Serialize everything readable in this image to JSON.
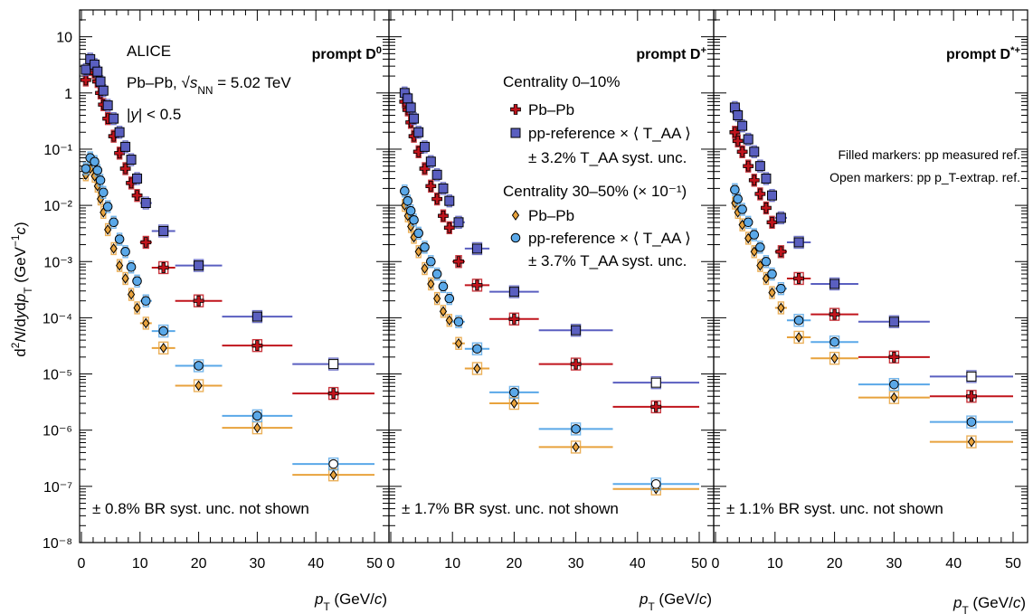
{
  "figure": {
    "ylabel": "d²N/dydp_T (GeV⁻¹c)",
    "xlabel": "p_T (GeV/c)",
    "x_ticks": [
      "0",
      "10",
      "20",
      "30",
      "40",
      "50"
    ],
    "y_ticks": [
      "10",
      "1",
      "10⁻¹",
      "10⁻²",
      "10⁻³",
      "10⁻⁴",
      "10⁻⁵",
      "10⁻⁶",
      "10⁻⁷",
      "10⁻⁸"
    ],
    "collab": "ALICE",
    "system": "Pb–Pb, √sNN = 5.02 TeV",
    "rapidity": "|y| < 0.5",
    "legend": {
      "cent1": "Centrality 0–10%",
      "cent1_pbpb": "Pb–Pb",
      "cent1_pp": "pp-reference × ⟨ T_AA ⟩",
      "cent1_syst": "± 3.2% T_AA syst. unc.",
      "cent2": "Centrality 30–50% (× 10⁻¹)",
      "cent2_pbpb": "Pb–Pb",
      "cent2_pp": "pp-reference × ⟨ T_AA ⟩",
      "cent2_syst": "± 3.7% T_AA syst. unc."
    },
    "note_filled": "Filled markers: pp measured ref.",
    "note_open": "Open markers: pp p_T-extrap. ref.",
    "colors": {
      "pbpb_central": "#c0141c",
      "pp_central": "#5a5fc0",
      "pbpb_semi": "#e8a23c",
      "pp_semi": "#5aa8e8",
      "axis": "#000000"
    }
  },
  "chart_data": [
    {
      "type": "scatter",
      "title": "prompt D⁰",
      "br_note": "± 0.8% BR syst. unc. not shown",
      "xlabel": "p_T (GeV/c)",
      "ylabel": "d²N/dydp_T (GeV⁻¹c)",
      "xlim": [
        0,
        50
      ],
      "ylim": [
        1e-08,
        30
      ],
      "yscale": "log",
      "series": [
        {
          "name": "Pb–Pb, Centrality 0–10%",
          "marker": "cross",
          "color": "pbpb_central",
          "x": [
            0.75,
            1.5,
            2.25,
            2.75,
            3.25,
            3.75,
            4.5,
            5.5,
            6.5,
            7.5,
            8.5,
            9.5,
            11,
            14,
            20,
            30,
            43
          ],
          "xerr": [
            0.25,
            0.5,
            0.25,
            0.25,
            0.25,
            0.25,
            0.5,
            0.5,
            0.5,
            0.5,
            0.5,
            0.5,
            1,
            2,
            4,
            6,
            7
          ],
          "y": [
            1.7,
            2.6,
            2.3,
            1.6,
            1.0,
            0.62,
            0.35,
            0.17,
            0.085,
            0.045,
            0.025,
            0.015,
            0.0022,
            0.00078,
            0.0002,
            3.2e-05,
            4.5e-06
          ]
        },
        {
          "name": "pp-reference × ⟨T_AA⟩, Centrality 0–10%",
          "marker": "square",
          "color": "pp_central",
          "x": [
            0.75,
            1.5,
            2.25,
            2.75,
            3.25,
            3.75,
            4.5,
            5.5,
            6.5,
            7.5,
            8.5,
            9.5,
            11,
            14,
            20,
            30,
            43
          ],
          "xerr": [
            0.25,
            0.5,
            0.25,
            0.25,
            0.25,
            0.25,
            0.5,
            0.5,
            0.5,
            0.5,
            0.5,
            0.5,
            1,
            2,
            4,
            6,
            7
          ],
          "y": [
            2.6,
            4.0,
            3.2,
            2.4,
            1.6,
            1.1,
            0.6,
            0.35,
            0.2,
            0.11,
            0.065,
            0.03,
            0.011,
            0.0035,
            0.00085,
            0.000105,
            1.5e-05
          ],
          "open": [
            false,
            false,
            false,
            false,
            false,
            false,
            false,
            false,
            false,
            false,
            false,
            false,
            false,
            false,
            false,
            false,
            true
          ]
        },
        {
          "name": "Pb–Pb, Centrality 30–50% (× 10⁻¹)",
          "marker": "diamond",
          "color": "pbpb_semi",
          "x": [
            0.75,
            1.5,
            2.25,
            2.75,
            3.25,
            3.75,
            4.5,
            5.5,
            6.5,
            7.5,
            8.5,
            9.5,
            11,
            14,
            20,
            30,
            43
          ],
          "xerr": [
            0.25,
            0.5,
            0.25,
            0.25,
            0.25,
            0.25,
            0.5,
            0.5,
            0.5,
            0.5,
            0.5,
            0.5,
            1,
            2,
            4,
            6,
            7
          ],
          "y": [
            0.035,
            0.045,
            0.033,
            0.022,
            0.013,
            0.0075,
            0.0037,
            0.0017,
            0.00085,
            0.0005,
            0.00026,
            0.00015,
            8e-05,
            2.9e-05,
            6.2e-06,
            1.1e-06,
            1.6e-07
          ]
        },
        {
          "name": "pp-reference × ⟨T_AA⟩, Centrality 30–50% (× 10⁻¹)",
          "marker": "circle",
          "color": "pp_semi",
          "x": [
            0.75,
            1.5,
            2.25,
            2.75,
            3.25,
            3.75,
            4.5,
            5.5,
            6.5,
            7.5,
            8.5,
            9.5,
            11,
            14,
            20,
            30,
            43
          ],
          "xerr": [
            0.25,
            0.5,
            0.25,
            0.25,
            0.25,
            0.25,
            0.5,
            0.5,
            0.5,
            0.5,
            0.5,
            0.5,
            1,
            2,
            4,
            6,
            7
          ],
          "y": [
            0.045,
            0.07,
            0.06,
            0.042,
            0.028,
            0.017,
            0.0095,
            0.005,
            0.0025,
            0.0015,
            0.0008,
            0.00045,
            0.0002,
            5.8e-05,
            1.4e-05,
            1.8e-06,
            2.5e-07
          ],
          "open": [
            false,
            false,
            false,
            false,
            false,
            false,
            false,
            false,
            false,
            false,
            false,
            false,
            false,
            false,
            false,
            false,
            true
          ]
        }
      ]
    },
    {
      "type": "scatter",
      "title": "prompt D⁺",
      "br_note": "± 1.7% BR syst. unc. not shown",
      "xlabel": "p_T (GeV/c)",
      "ylabel": "",
      "xlim": [
        0,
        50
      ],
      "ylim": [
        1e-08,
        30
      ],
      "yscale": "log",
      "series": [
        {
          "name": "Pb–Pb, Centrality 0–10%",
          "marker": "cross",
          "color": "pbpb_central",
          "x": [
            2.25,
            2.75,
            3.25,
            3.75,
            4.5,
            5.5,
            6.5,
            7.5,
            8.5,
            9.5,
            11,
            14,
            20,
            30,
            43
          ],
          "xerr": [
            0.25,
            0.25,
            0.25,
            0.25,
            0.5,
            0.5,
            0.5,
            0.5,
            0.5,
            0.5,
            1,
            2,
            4,
            6,
            7
          ],
          "y": [
            0.7,
            0.5,
            0.3,
            0.17,
            0.09,
            0.045,
            0.022,
            0.013,
            0.0065,
            0.004,
            0.001,
            0.00038,
            9.5e-05,
            1.5e-05,
            2.6e-06
          ]
        },
        {
          "name": "pp-reference × ⟨T_AA⟩, Centrality 0–10%",
          "marker": "square",
          "color": "pp_central",
          "x": [
            2.25,
            2.75,
            3.25,
            3.75,
            4.5,
            5.5,
            6.5,
            7.5,
            8.5,
            9.5,
            11,
            14,
            20,
            30,
            43
          ],
          "xerr": [
            0.25,
            0.25,
            0.25,
            0.25,
            0.5,
            0.5,
            0.5,
            0.5,
            0.5,
            0.5,
            1,
            2,
            4,
            6,
            7
          ],
          "y": [
            1.0,
            0.8,
            0.55,
            0.35,
            0.2,
            0.11,
            0.06,
            0.035,
            0.02,
            0.012,
            0.005,
            0.0017,
            0.00029,
            6e-05,
            7e-06
          ],
          "open": [
            false,
            false,
            false,
            false,
            false,
            false,
            false,
            false,
            false,
            false,
            false,
            false,
            false,
            false,
            true
          ]
        },
        {
          "name": "Pb–Pb, Centrality 30–50% (× 10⁻¹)",
          "marker": "diamond",
          "color": "pbpb_semi",
          "x": [
            2.25,
            2.75,
            3.25,
            3.75,
            4.5,
            5.5,
            6.5,
            7.5,
            8.5,
            9.5,
            11,
            14,
            20,
            30,
            43
          ],
          "xerr": [
            0.25,
            0.25,
            0.25,
            0.25,
            0.5,
            0.5,
            0.5,
            0.5,
            0.5,
            0.5,
            1,
            2,
            4,
            6,
            7
          ],
          "y": [
            0.01,
            0.0065,
            0.0042,
            0.0027,
            0.0015,
            0.00075,
            0.0004,
            0.00022,
            0.00013,
            9e-05,
            3.5e-05,
            1.25e-05,
            3e-06,
            5e-07,
            9e-08
          ]
        },
        {
          "name": "pp-reference × ⟨T_AA⟩, Centrality 30–50% (× 10⁻¹)",
          "marker": "circle",
          "color": "pp_semi",
          "x": [
            2.25,
            2.75,
            3.25,
            3.75,
            4.5,
            5.5,
            6.5,
            7.5,
            8.5,
            9.5,
            11,
            14,
            20,
            30,
            43
          ],
          "xerr": [
            0.25,
            0.25,
            0.25,
            0.25,
            0.5,
            0.5,
            0.5,
            0.5,
            0.5,
            0.5,
            1,
            2,
            4,
            6,
            7
          ],
          "y": [
            0.018,
            0.012,
            0.008,
            0.0055,
            0.0032,
            0.0018,
            0.001,
            0.0006,
            0.00036,
            0.00022,
            8.5e-05,
            2.8e-05,
            4.7e-06,
            1.05e-06,
            1.1e-07
          ],
          "open": [
            false,
            false,
            false,
            false,
            false,
            false,
            false,
            false,
            false,
            false,
            false,
            false,
            false,
            false,
            true
          ]
        }
      ]
    },
    {
      "type": "scatter",
      "title": "prompt D*⁺",
      "br_note": "± 1.1% BR syst. unc. not shown",
      "xlabel": "p_T (GeV/c)",
      "ylabel": "",
      "xlim": [
        0,
        50
      ],
      "ylim": [
        1e-08,
        30
      ],
      "yscale": "log",
      "series": [
        {
          "name": "Pb–Pb, Centrality 0–10%",
          "marker": "cross",
          "color": "pbpb_central",
          "x": [
            3.25,
            3.75,
            4.5,
            5.5,
            6.5,
            7.5,
            8.5,
            9.5,
            11,
            14,
            20,
            30,
            43
          ],
          "xerr": [
            0.25,
            0.25,
            0.5,
            0.5,
            0.5,
            0.5,
            0.5,
            0.5,
            1,
            2,
            4,
            6,
            7
          ],
          "y": [
            0.2,
            0.14,
            0.09,
            0.05,
            0.028,
            0.016,
            0.009,
            0.005,
            0.0015,
            0.0005,
            0.000115,
            2e-05,
            4e-06
          ]
        },
        {
          "name": "pp-reference × ⟨T_AA⟩, Centrality 0–10%",
          "marker": "square",
          "color": "pp_central",
          "x": [
            3.25,
            3.75,
            4.5,
            5.5,
            6.5,
            7.5,
            8.5,
            9.5,
            11,
            14,
            20,
            30,
            43
          ],
          "xerr": [
            0.25,
            0.25,
            0.5,
            0.5,
            0.5,
            0.5,
            0.5,
            0.5,
            1,
            2,
            4,
            6,
            7
          ],
          "y": [
            0.55,
            0.4,
            0.26,
            0.15,
            0.09,
            0.05,
            0.03,
            0.015,
            0.006,
            0.0022,
            0.0004,
            8.5e-05,
            9e-06
          ],
          "open": [
            false,
            false,
            false,
            false,
            false,
            false,
            false,
            false,
            false,
            false,
            false,
            false,
            true
          ]
        },
        {
          "name": "Pb–Pb, Centrality 30–50% (× 10⁻¹)",
          "marker": "diamond",
          "color": "pbpb_semi",
          "x": [
            3.25,
            3.75,
            4.5,
            5.5,
            6.5,
            7.5,
            8.5,
            9.5,
            11,
            14,
            20,
            30,
            43
          ],
          "xerr": [
            0.25,
            0.25,
            0.5,
            0.5,
            0.5,
            0.5,
            0.5,
            0.5,
            1,
            2,
            4,
            6,
            7
          ],
          "y": [
            0.011,
            0.0075,
            0.0045,
            0.0026,
            0.0015,
            0.00085,
            0.0005,
            0.00028,
            0.00015,
            4.5e-05,
            1.9e-05,
            3.8e-06,
            6.2e-07
          ]
        },
        {
          "name": "pp-reference × ⟨T_AA⟩, Centrality 30–50% (× 10⁻¹)",
          "marker": "circle",
          "color": "pp_semi",
          "x": [
            3.25,
            3.75,
            4.5,
            5.5,
            6.5,
            7.5,
            8.5,
            9.5,
            11,
            14,
            20,
            30,
            43
          ],
          "xerr": [
            0.25,
            0.25,
            0.5,
            0.5,
            0.5,
            0.5,
            0.5,
            0.5,
            1,
            2,
            4,
            6,
            7
          ],
          "y": [
            0.019,
            0.013,
            0.0085,
            0.005,
            0.003,
            0.0018,
            0.001,
            0.0006,
            0.00033,
            9e-05,
            3.7e-05,
            6.5e-06,
            1.4e-06
          ],
          "open": [
            false,
            false,
            false,
            false,
            false,
            false,
            false,
            false,
            false,
            false,
            false,
            false,
            false
          ]
        }
      ]
    }
  ]
}
